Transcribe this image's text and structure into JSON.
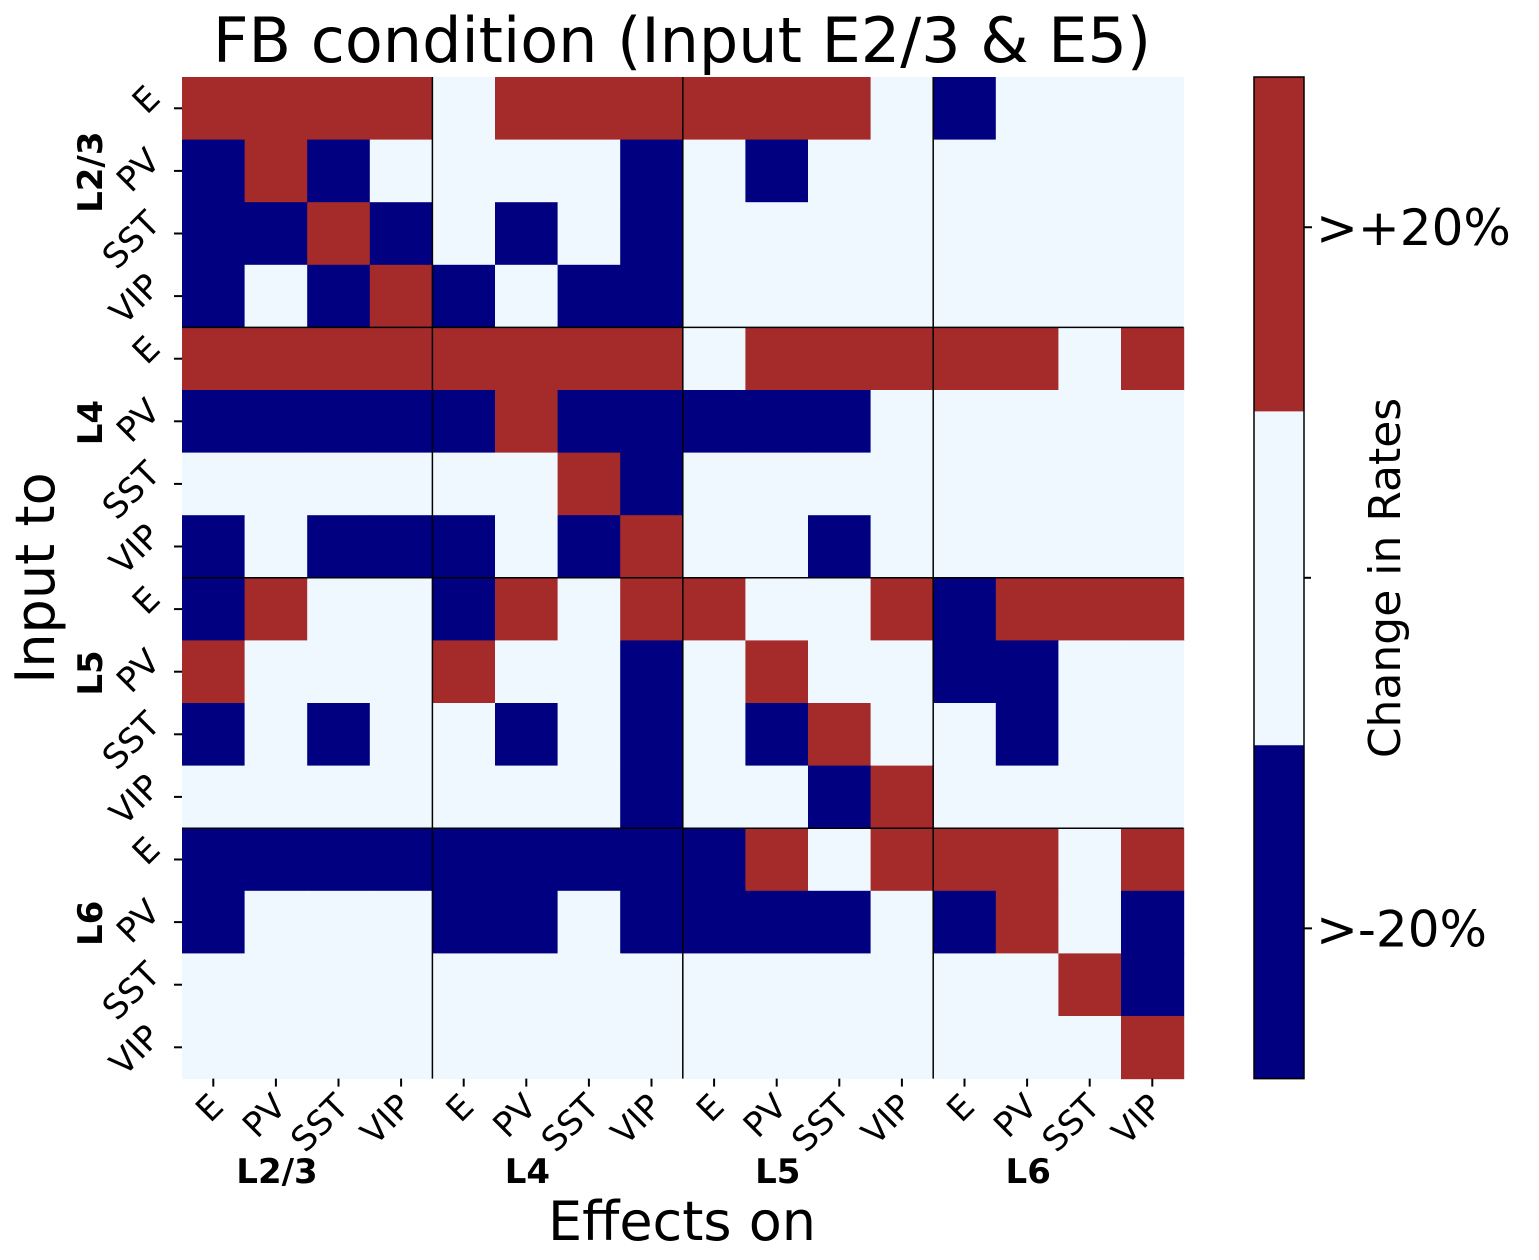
{
  "chart_data": {
    "type": "heatmap",
    "title": "FB condition (Input E2/3 & E5)",
    "xlabel": "Effects on",
    "ylabel": "Input to",
    "cell_types": [
      "E",
      "PV",
      "SST",
      "VIP"
    ],
    "layers": [
      "L2/3",
      "L4",
      "L5",
      "L6"
    ],
    "colorbar": {
      "label": "Change in Rates",
      "ticks": [
        ">-20%",
        ">+20%"
      ],
      "levels": [
        -1,
        0,
        1
      ],
      "colors": {
        "-1": "#000080",
        "0": "#f0f8ff",
        "1": "#a52a2a"
      }
    },
    "matrix": [
      [
        1,
        1,
        1,
        1,
        0,
        1,
        1,
        1,
        1,
        1,
        1,
        0,
        -1,
        0,
        0,
        0
      ],
      [
        -1,
        1,
        -1,
        0,
        0,
        0,
        0,
        -1,
        0,
        -1,
        0,
        0,
        0,
        0,
        0,
        0
      ],
      [
        -1,
        -1,
        1,
        -1,
        0,
        -1,
        0,
        -1,
        0,
        0,
        0,
        0,
        0,
        0,
        0,
        0
      ],
      [
        -1,
        0,
        -1,
        1,
        -1,
        0,
        -1,
        -1,
        0,
        0,
        0,
        0,
        0,
        0,
        0,
        0
      ],
      [
        1,
        1,
        1,
        1,
        1,
        1,
        1,
        1,
        0,
        1,
        1,
        1,
        1,
        1,
        0,
        1
      ],
      [
        -1,
        -1,
        -1,
        -1,
        -1,
        1,
        -1,
        -1,
        -1,
        -1,
        -1,
        0,
        0,
        0,
        0,
        0
      ],
      [
        0,
        0,
        0,
        0,
        0,
        0,
        1,
        -1,
        0,
        0,
        0,
        0,
        0,
        0,
        0,
        0
      ],
      [
        -1,
        0,
        -1,
        -1,
        -1,
        0,
        -1,
        1,
        0,
        0,
        -1,
        0,
        0,
        0,
        0,
        0
      ],
      [
        -1,
        1,
        0,
        0,
        -1,
        1,
        0,
        1,
        1,
        0,
        0,
        1,
        -1,
        1,
        1,
        1
      ],
      [
        1,
        0,
        0,
        0,
        1,
        0,
        0,
        -1,
        0,
        1,
        0,
        0,
        -1,
        -1,
        0,
        0
      ],
      [
        -1,
        0,
        -1,
        0,
        0,
        -1,
        0,
        -1,
        0,
        -1,
        1,
        0,
        0,
        -1,
        0,
        0
      ],
      [
        0,
        0,
        0,
        0,
        0,
        0,
        0,
        -1,
        0,
        0,
        -1,
        1,
        0,
        0,
        0,
        0
      ],
      [
        -1,
        -1,
        -1,
        -1,
        -1,
        -1,
        -1,
        -1,
        -1,
        1,
        0,
        1,
        1,
        1,
        0,
        1
      ],
      [
        -1,
        0,
        0,
        0,
        -1,
        -1,
        0,
        -1,
        -1,
        -1,
        -1,
        0,
        -1,
        1,
        0,
        -1
      ],
      [
        0,
        0,
        0,
        0,
        0,
        0,
        0,
        0,
        0,
        0,
        0,
        0,
        0,
        0,
        1,
        -1
      ],
      [
        0,
        0,
        0,
        0,
        0,
        0,
        0,
        0,
        0,
        0,
        0,
        0,
        0,
        0,
        0,
        1
      ]
    ]
  }
}
